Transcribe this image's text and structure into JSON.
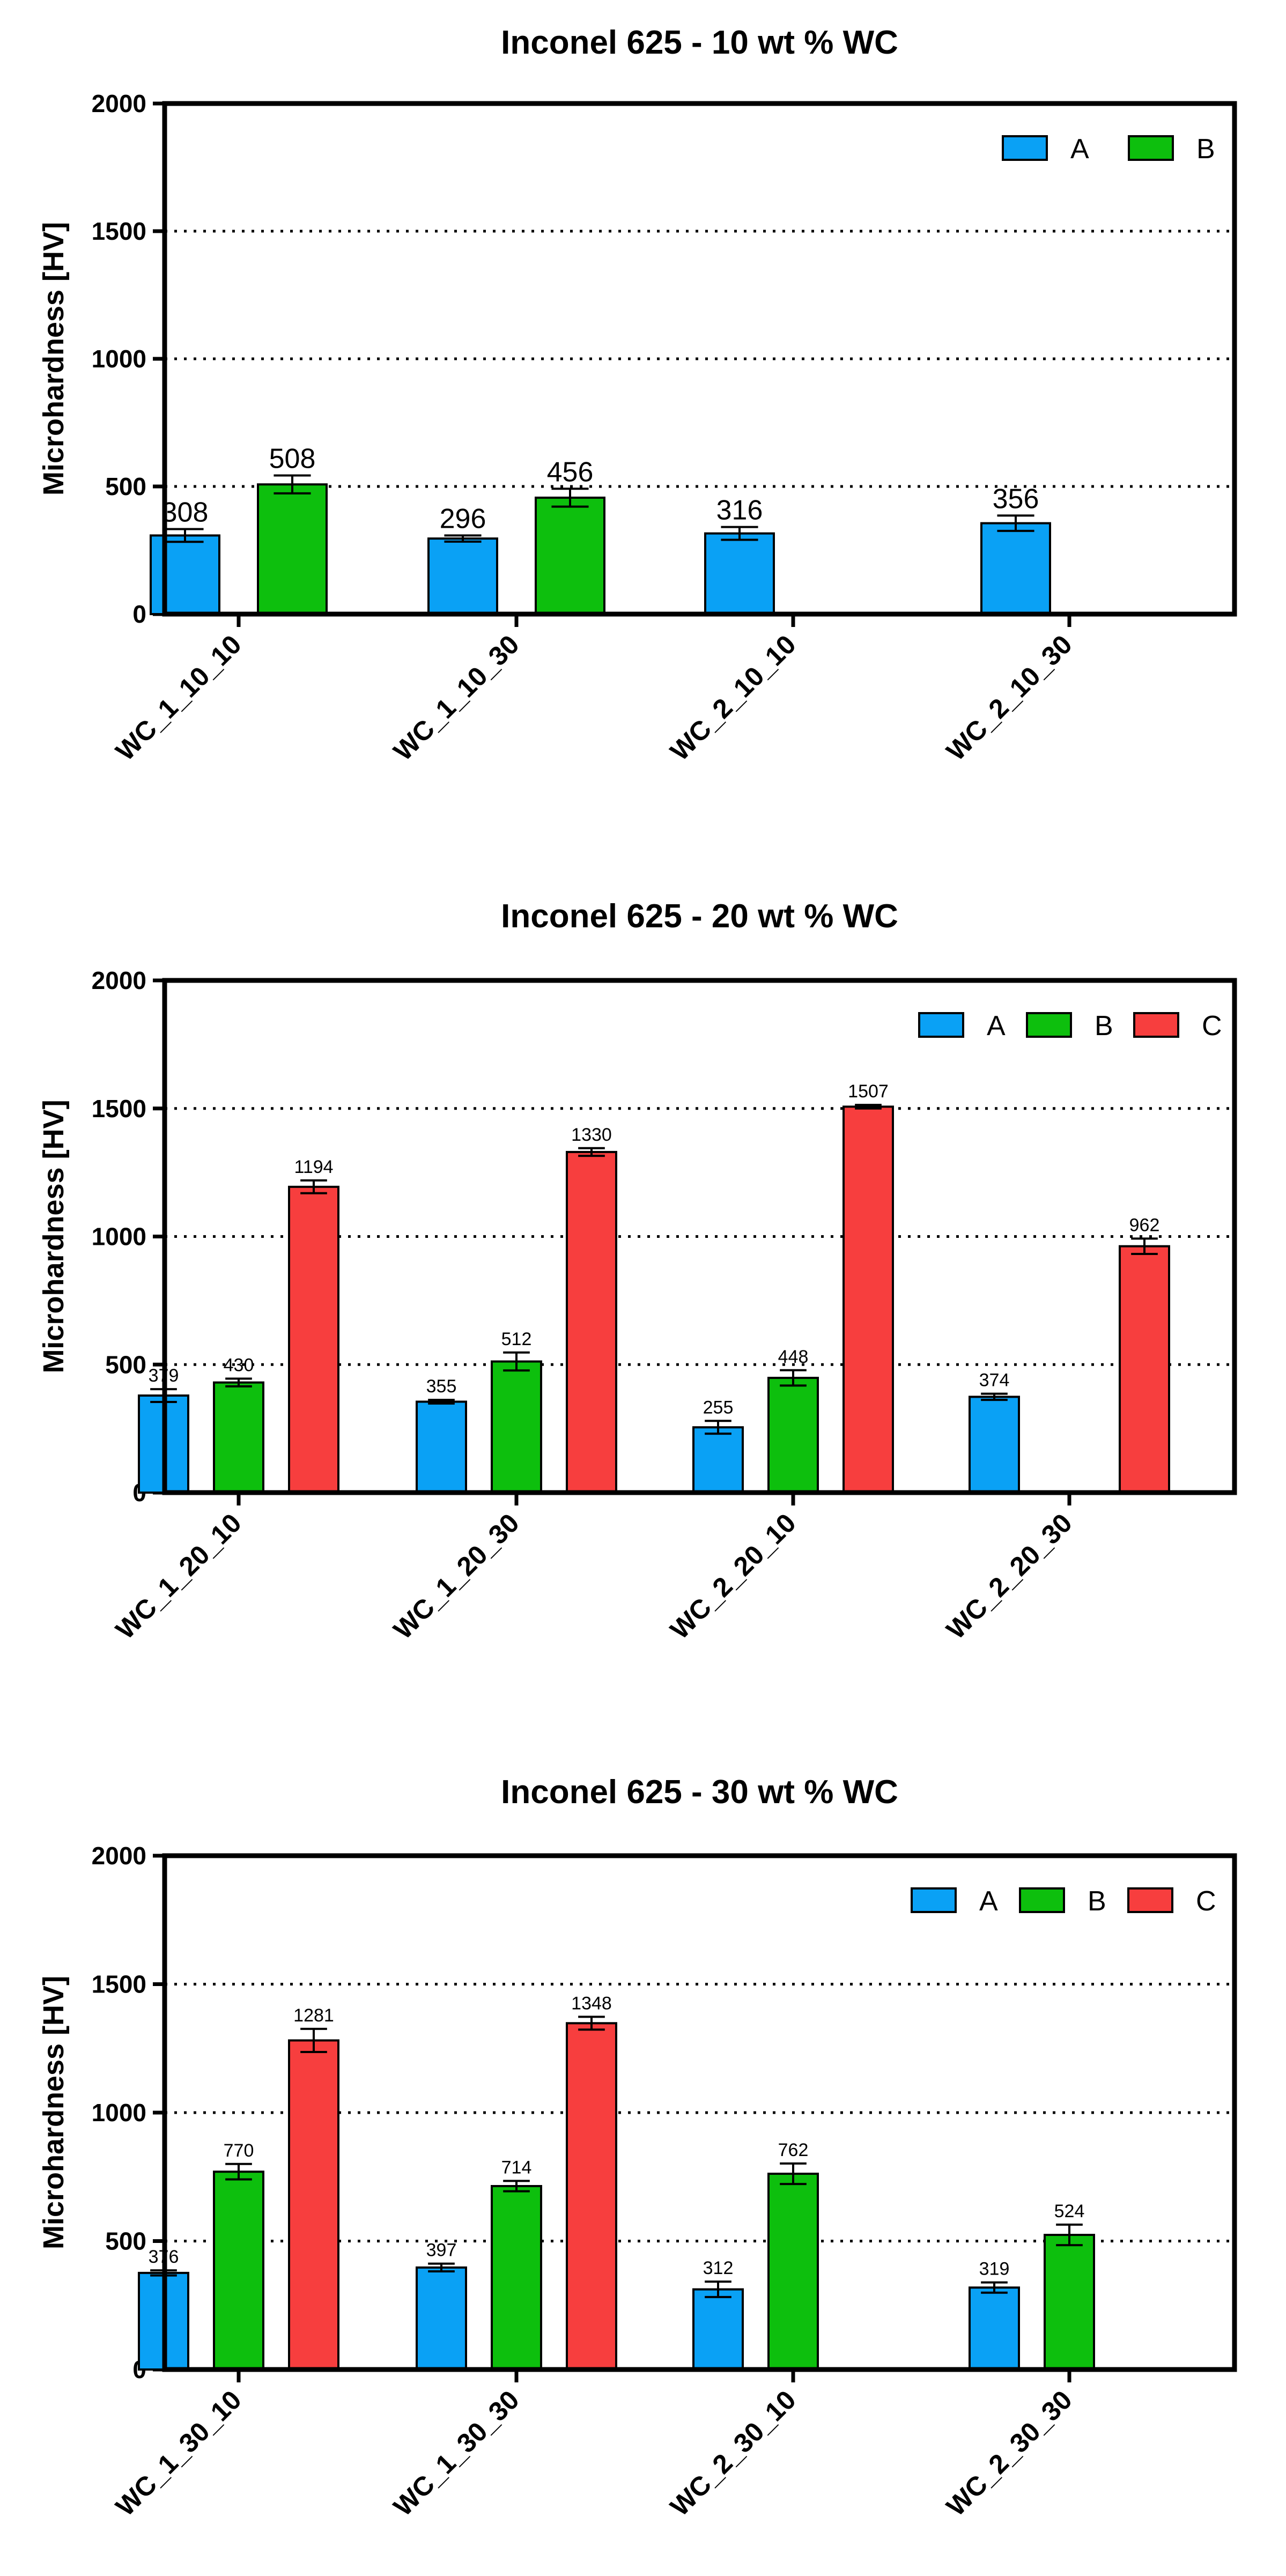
{
  "chart_data": [
    {
      "type": "bar",
      "title": "Inconel 625 - 10 wt % WC",
      "ylabel": "Microhardness [HV]",
      "xlabel": "",
      "ylim": [
        0,
        2000
      ],
      "yticks": [
        0,
        500,
        1000,
        1500,
        2000
      ],
      "grid_values": [
        500,
        1000,
        1500
      ],
      "legend_position": "top-right",
      "categories": [
        "WC_1_10_10",
        "WC_1_10_30",
        "WC_2_10_10",
        "WC_2_10_30"
      ],
      "series": [
        {
          "name": "A",
          "color": "#0aa1f5",
          "values": [
            308,
            296,
            316,
            356
          ],
          "errors": [
            25,
            12,
            25,
            30
          ]
        },
        {
          "name": "B",
          "color": "#0dbf0d",
          "values": [
            508,
            456,
            null,
            null
          ],
          "errors": [
            35,
            35,
            null,
            null
          ]
        }
      ]
    },
    {
      "type": "bar",
      "title": "Inconel 625 - 20 wt % WC",
      "ylabel": "Microhardness [HV]",
      "xlabel": "",
      "ylim": [
        0,
        2000
      ],
      "yticks": [
        0,
        500,
        1000,
        1500,
        2000
      ],
      "grid_values": [
        500,
        1000,
        1500
      ],
      "legend_position": "top-right",
      "categories": [
        "WC_1_20_10",
        "WC_1_20_30",
        "WC_2_20_10",
        "WC_2_20_30"
      ],
      "series": [
        {
          "name": "A",
          "color": "#0aa1f5",
          "values": [
            379,
            355,
            255,
            374
          ],
          "errors": [
            25,
            7,
            25,
            12
          ]
        },
        {
          "name": "B",
          "color": "#0dbf0d",
          "values": [
            430,
            512,
            448,
            null
          ],
          "errors": [
            15,
            35,
            30,
            null
          ]
        },
        {
          "name": "C",
          "color": "#f73e3e",
          "values": [
            1194,
            1330,
            1507,
            962
          ],
          "errors": [
            25,
            15,
            7,
            30
          ]
        }
      ]
    },
    {
      "type": "bar",
      "title": "Inconel 625 - 30 wt % WC",
      "ylabel": "Microhardness [HV]",
      "xlabel": "",
      "ylim": [
        0,
        2000
      ],
      "yticks": [
        0,
        500,
        1000,
        1500,
        2000
      ],
      "grid_values": [
        500,
        1000,
        1500
      ],
      "legend_position": "top-right",
      "categories": [
        "WC_1_30_10",
        "WC_1_30_30",
        "WC_2_30_10",
        "WC_2_30_30"
      ],
      "series": [
        {
          "name": "A",
          "color": "#0aa1f5",
          "values": [
            376,
            397,
            312,
            319
          ],
          "errors": [
            10,
            15,
            30,
            20
          ]
        },
        {
          "name": "B",
          "color": "#0dbf0d",
          "values": [
            770,
            714,
            762,
            524
          ],
          "errors": [
            30,
            20,
            40,
            40
          ]
        },
        {
          "name": "C",
          "color": "#f73e3e",
          "values": [
            1281,
            1348,
            null,
            null
          ],
          "errors": [
            45,
            25,
            null,
            null
          ]
        }
      ]
    }
  ]
}
